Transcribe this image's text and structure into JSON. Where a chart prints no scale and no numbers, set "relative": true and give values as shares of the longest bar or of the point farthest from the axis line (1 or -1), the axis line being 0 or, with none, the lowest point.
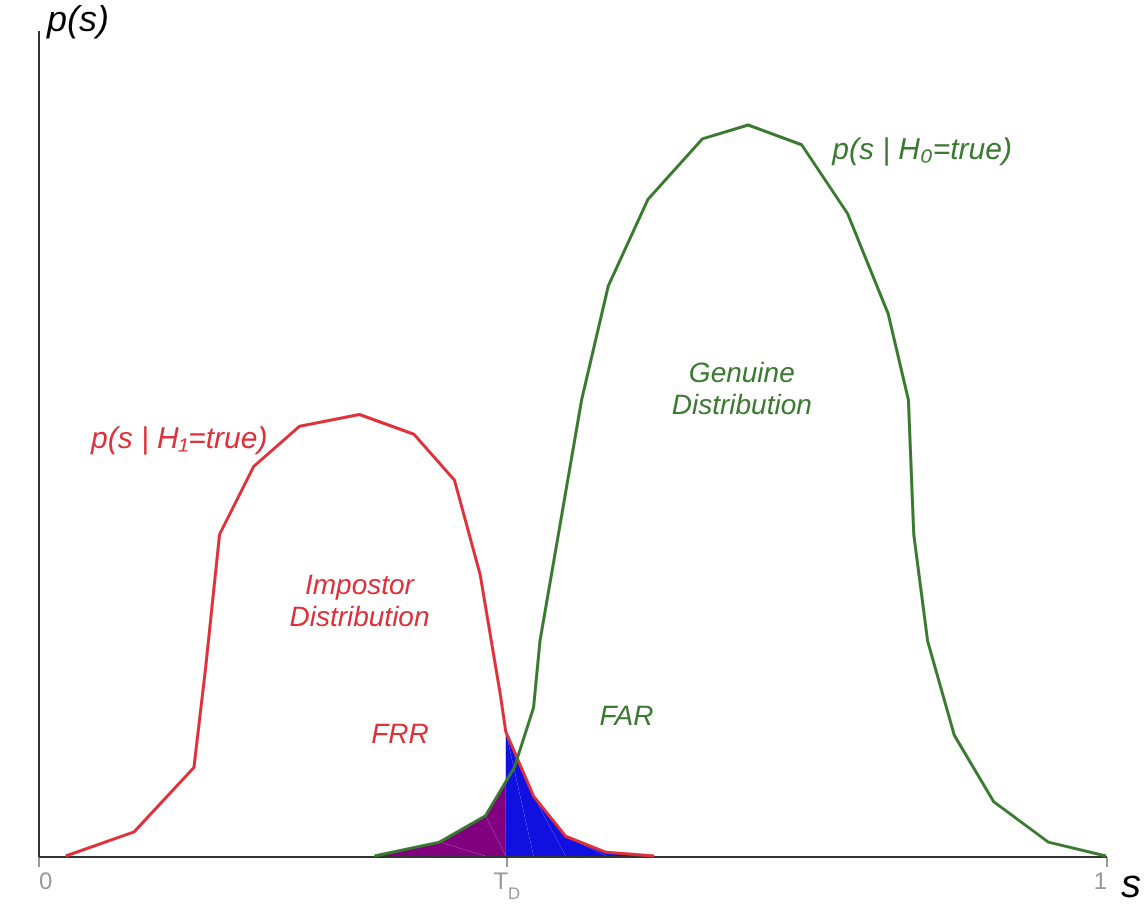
{
  "chart_data": {
    "type": "line",
    "relative": true,
    "xlabel": "s",
    "ylabel": "p(s)",
    "xlim": [
      0,
      1
    ],
    "xticks": [
      0,
      {
        "value": 0.438,
        "label": "T$_{D}$"
      },
      1
    ],
    "tick_labels": "x",
    "series": [
      {
        "type": "area",
        "color": "#800080",
        "x": [
          0.315,
          0.376,
          0.419,
          0.438
        ],
        "values": [
          0,
          0.019,
          0.055,
          0.1
        ]
      },
      {
        "type": "area",
        "color": "#1010e0",
        "x": [
          0.438,
          0.464,
          0.494,
          0.532,
          0.577
        ],
        "values": [
          0.17,
          0.082,
          0.027,
          0.005,
          0
        ]
      },
      {
        "name": "p(s | H₁=true)",
        "color": "#e0303a",
        "x": [
          0.026,
          0.09,
          0.146,
          0.157,
          0.17,
          0.202,
          0.245,
          0.301,
          0.352,
          0.39,
          0.414,
          0.433,
          0.438,
          0.464,
          0.494,
          0.532,
          0.577
        ],
        "values": [
          0,
          0.033,
          0.121,
          0.258,
          0.44,
          0.533,
          0.588,
          0.604,
          0.577,
          0.514,
          0.385,
          0.22,
          0.17,
          0.082,
          0.027,
          0.005,
          0
        ]
      },
      {
        "name": "p(s | H₀=true)",
        "color": "#3a7a30",
        "x": [
          0.315,
          0.376,
          0.419,
          0.446,
          0.464,
          0.47,
          0.509,
          0.534,
          0.571,
          0.622,
          0.665,
          0.715,
          0.758,
          0.796,
          0.815,
          0.82,
          0.833,
          0.858,
          0.895,
          0.946,
          1
        ],
        "values": [
          0,
          0.019,
          0.055,
          0.121,
          0.203,
          0.294,
          0.624,
          0.78,
          0.898,
          0.981,
          1,
          0.973,
          0.879,
          0.742,
          0.624,
          0.44,
          0.294,
          0.165,
          0.074,
          0.019,
          0
        ]
      }
    ],
    "annotations": [
      "Impostor Distribution",
      "Genuine Distribution",
      "FRR",
      "FAR"
    ]
  }
}
